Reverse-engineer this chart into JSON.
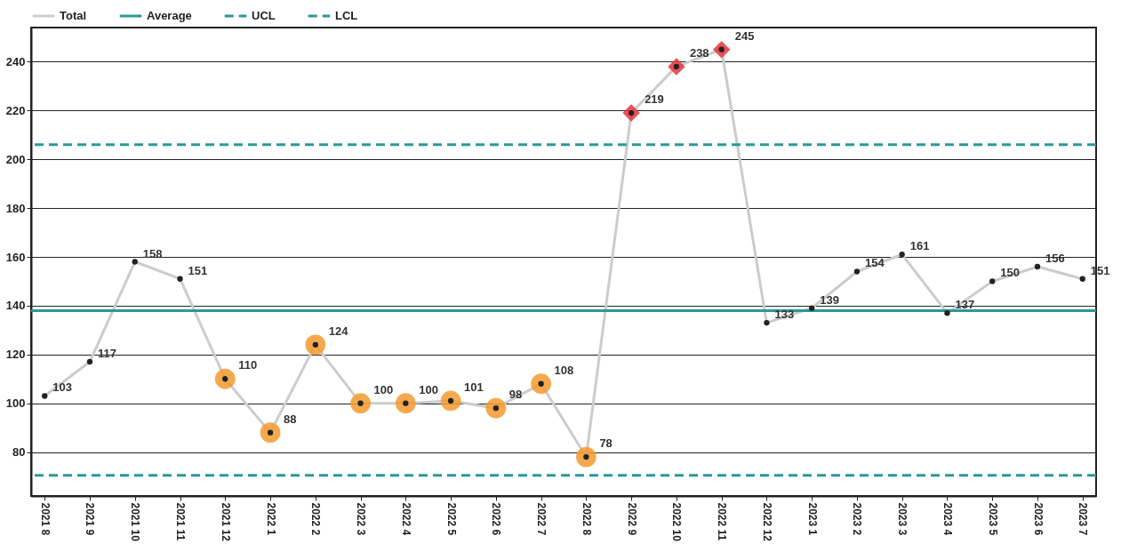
{
  "chart_data": {
    "type": "line",
    "categories": [
      "2021 8",
      "2021 9",
      "2021 10",
      "2021 11",
      "2021 12",
      "2022 1",
      "2022 2",
      "2022 3",
      "2022 4",
      "2022 5",
      "2022 6",
      "2022 7",
      "2022 8",
      "2022 9",
      "2022 10",
      "2022 11",
      "2022 12",
      "2023 1",
      "2023 2",
      "2023 3",
      "2023 4",
      "2023 5",
      "2023 6",
      "2023 7"
    ],
    "series": [
      {
        "name": "Total",
        "color": "#cccccc",
        "marker": "circle",
        "values": [
          103,
          117,
          158,
          151,
          110,
          88,
          124,
          100,
          100,
          101,
          98,
          108,
          78,
          219,
          238,
          245,
          133,
          139,
          154,
          161,
          137,
          150,
          156,
          151
        ],
        "value_labels": [
          "103",
          "117",
          "158",
          "151",
          null,
          null,
          null,
          null,
          null,
          null,
          null,
          null,
          null,
          null,
          null,
          null,
          "133",
          "139",
          "154",
          "161",
          "137",
          "150",
          "156",
          "151"
        ]
      },
      {
        "type": "scatter",
        "color": "#f39a2e",
        "marker": "circle",
        "values": [
          null,
          null,
          null,
          null,
          110,
          88,
          124,
          100,
          100,
          101,
          98,
          108,
          78,
          null,
          null,
          null,
          null,
          null,
          null,
          null,
          null,
          null,
          null,
          null
        ],
        "value_labels": [
          null,
          null,
          null,
          null,
          "110",
          "88",
          "124",
          "100",
          "100",
          "101",
          "98",
          "108",
          "78",
          null,
          null,
          null,
          null,
          null,
          null,
          null,
          null,
          null,
          null,
          null
        ]
      },
      {
        "type": "scatter",
        "color": "#e8323a",
        "marker": "diamond",
        "values": [
          null,
          null,
          null,
          null,
          null,
          null,
          null,
          null,
          null,
          null,
          null,
          null,
          null,
          219,
          238,
          245,
          null,
          null,
          null,
          null,
          null,
          null,
          null,
          null
        ],
        "value_labels": [
          null,
          null,
          null,
          null,
          null,
          null,
          null,
          null,
          null,
          null,
          null,
          null,
          null,
          "219",
          "238",
          "245",
          null,
          null,
          null,
          null,
          null,
          null,
          null,
          null
        ]
      }
    ],
    "ref_lines": [
      {
        "axis": "y",
        "value": 138,
        "label": "Average",
        "color": "#2a9898",
        "line_style": "solid"
      },
      {
        "axis": "y",
        "value": 206,
        "label": "UCL",
        "color": "#2a9898",
        "line_style": "dashed"
      },
      {
        "axis": "y",
        "value": 70.5,
        "label": "LCL",
        "color": "#2a9898",
        "line_style": "dashed"
      }
    ],
    "ylim": [
      62,
      254
    ],
    "yticks": [
      80,
      100,
      120,
      140,
      160,
      180,
      200,
      220,
      240
    ],
    "grid": "y",
    "legend": "top left"
  }
}
